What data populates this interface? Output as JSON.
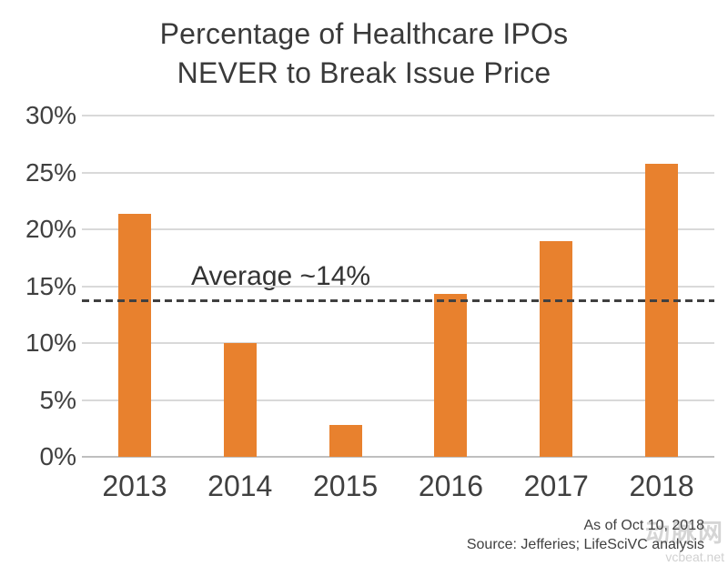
{
  "chart_data": {
    "type": "bar",
    "title": "Percentage of Healthcare IPOs NEVER to Break Issue Price",
    "title_lines": [
      "Percentage of Healthcare IPOs",
      "NEVER to Break Issue Price"
    ],
    "categories": [
      "2013",
      "2014",
      "2015",
      "2016",
      "2017",
      "2018"
    ],
    "values": [
      21.4,
      10.0,
      2.8,
      14.3,
      19.0,
      25.8
    ],
    "unit": "%",
    "xlabel": "",
    "ylabel": "",
    "ylim": [
      0,
      30
    ],
    "ytick_step": 5,
    "ytick_labels": [
      "0%",
      "5%",
      "10%",
      "15%",
      "20%",
      "25%",
      "30%"
    ],
    "grid": true,
    "legend": "none",
    "bar_color": "#e8812e",
    "gridline_color": "#d9d9d9",
    "axis_line_color": "#bfbfbf",
    "average_line": {
      "value": 13.8,
      "label": "Average ~14%",
      "style": "dashed",
      "color": "#404040"
    }
  },
  "footer": {
    "as_of": "As of Oct 10, 2018",
    "source": "Source: Jefferies; LifeSciVC analysis"
  },
  "watermark": {
    "cn": "动脉网",
    "en": "vcbeat.net"
  }
}
